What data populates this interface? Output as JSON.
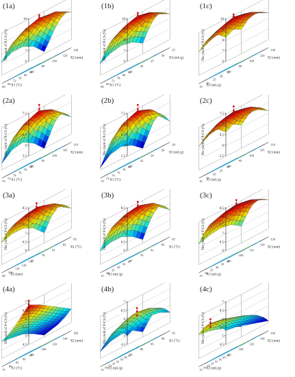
{
  "figure": {
    "z_label": "The yield of P-CS (%)"
  },
  "colors": {
    "floor": "#6b6b6b",
    "wall": "#ffffff",
    "point_red": "#cc1111",
    "contour_low": "#1f9fd8",
    "contour_high": "#e8d21a"
  },
  "chart_data": [
    {
      "id": "1a",
      "type": "surface",
      "title": "(1a)",
      "xlabel": "X1 (°C)",
      "ylabel": "X2 (min)",
      "xticks": [
        "90",
        "84",
        "78",
        "72",
        "66",
        "60"
      ],
      "yticks": [
        "60",
        "80",
        "100",
        "120",
        "140"
      ],
      "zticks": [
        "6",
        "7",
        "8",
        "9",
        "10"
      ],
      "zlim": [
        6,
        10
      ],
      "zgrid": [
        [
          7.4,
          8.3,
          8.9,
          9.1,
          8.6
        ],
        [
          8.2,
          8.9,
          9.4,
          9.4,
          8.8
        ],
        [
          8.6,
          9.3,
          9.6,
          9.4,
          8.5
        ],
        [
          8.5,
          9.1,
          9.3,
          9.0,
          7.9
        ],
        [
          8.0,
          8.6,
          8.6,
          8.2,
          7.0
        ],
        [
          7.2,
          7.7,
          7.7,
          7.2,
          6.2
        ]
      ]
    },
    {
      "id": "1b",
      "type": "surface",
      "title": "(1b)",
      "xlabel": "X1 (°C)",
      "ylabel": "X3 (mL/g)",
      "xticks": [
        "90",
        "84",
        "78",
        "72",
        "66",
        "60"
      ],
      "yticks": [
        "15",
        "20",
        "25",
        "30",
        "35"
      ],
      "zticks": [
        "6",
        "7",
        "8",
        "9",
        "10"
      ],
      "zlim": [
        6,
        10
      ],
      "zgrid": [
        [
          8.0,
          8.6,
          9.0,
          8.9,
          8.4
        ],
        [
          8.6,
          9.2,
          9.5,
          9.3,
          8.8
        ],
        [
          8.9,
          9.5,
          9.8,
          9.6,
          9.0
        ],
        [
          8.7,
          9.3,
          9.5,
          9.3,
          8.7
        ],
        [
          8.1,
          8.6,
          8.8,
          8.6,
          8.0
        ],
        [
          7.1,
          7.6,
          7.8,
          7.6,
          7.0
        ]
      ]
    },
    {
      "id": "1c",
      "type": "surface",
      "title": "(1c)",
      "xlabel": "X3 (mL/g)",
      "ylabel": "X2 (min)",
      "xticks": [
        "35",
        "30",
        "25",
        "20",
        "15"
      ],
      "yticks": [
        "60",
        "80",
        "100",
        "120",
        "140"
      ],
      "zticks": [
        "6",
        "7",
        "8",
        "9",
        "10"
      ],
      "zlim": [
        6,
        10
      ],
      "zgrid": [
        [
          8.2,
          8.8,
          9.1,
          9.0,
          8.5
        ],
        [
          8.8,
          9.3,
          9.6,
          9.4,
          8.9
        ],
        [
          9.0,
          9.5,
          9.8,
          9.6,
          9.1
        ],
        [
          8.8,
          9.3,
          9.6,
          9.4,
          8.9
        ],
        [
          8.2,
          8.7,
          9.0,
          8.8,
          8.3
        ]
      ]
    },
    {
      "id": "2a",
      "type": "surface",
      "title": "(2a)",
      "xlabel": "X1 (°C)",
      "ylabel": "X2 (min)",
      "xticks": [
        "80",
        "78",
        "76",
        "74",
        "72",
        "70"
      ],
      "yticks": [
        "90",
        "95",
        "100",
        "105",
        "110"
      ],
      "zticks": [
        "5.5",
        "6",
        "6.5",
        "7",
        "7.5"
      ],
      "zlim": [
        5.5,
        7.5
      ],
      "zgrid": [
        [
          6.2,
          6.6,
          6.8,
          6.7,
          6.3
        ],
        [
          6.6,
          7.0,
          7.2,
          7.0,
          6.6
        ],
        [
          6.8,
          7.2,
          7.4,
          7.2,
          6.7
        ],
        [
          6.7,
          7.1,
          7.2,
          7.0,
          6.5
        ],
        [
          6.3,
          6.7,
          6.8,
          6.6,
          6.0
        ],
        [
          5.8,
          6.2,
          6.3,
          6.0,
          5.5
        ]
      ]
    },
    {
      "id": "2b",
      "type": "surface",
      "title": "(2b)",
      "xlabel": "X1 (°C)",
      "ylabel": "X3 (mL/g)",
      "xticks": [
        "80",
        "78",
        "76",
        "74",
        "72",
        "70"
      ],
      "yticks": [
        "20",
        "22",
        "24",
        "26",
        "28"
      ],
      "zticks": [
        "5.5",
        "6",
        "6.5",
        "7",
        "7.5"
      ],
      "zlim": [
        5.5,
        7.5
      ],
      "zgrid": [
        [
          6.0,
          6.5,
          6.7,
          6.6,
          6.1
        ],
        [
          6.5,
          7.0,
          7.2,
          7.0,
          6.5
        ],
        [
          6.7,
          7.2,
          7.4,
          7.2,
          6.7
        ],
        [
          6.6,
          7.1,
          7.2,
          7.0,
          6.5
        ],
        [
          6.1,
          6.6,
          6.7,
          6.5,
          6.0
        ],
        [
          5.6,
          6.0,
          6.1,
          5.9,
          5.5
        ]
      ]
    },
    {
      "id": "2c",
      "type": "surface",
      "title": "(2c)",
      "xlabel": "X3 (mL/g)",
      "ylabel": "X2 (min)",
      "xticks": [
        "30",
        "25",
        "20",
        "15",
        "10"
      ],
      "yticks": [
        "90",
        "95",
        "100",
        "105",
        "110"
      ],
      "zticks": [
        "5.5",
        "6",
        "6.5",
        "7",
        "7.5"
      ],
      "zlim": [
        5.5,
        7.5
      ],
      "zgrid": [
        [
          6.6,
          6.9,
          7.0,
          6.9,
          6.6
        ],
        [
          6.9,
          7.2,
          7.3,
          7.2,
          6.9
        ],
        [
          7.0,
          7.3,
          7.4,
          7.3,
          7.0
        ],
        [
          6.9,
          7.2,
          7.3,
          7.2,
          6.9
        ],
        [
          6.6,
          6.9,
          7.0,
          6.9,
          6.6
        ]
      ]
    },
    {
      "id": "3a",
      "type": "surface",
      "title": "(3a)",
      "xlabel": "X2 (min)",
      "ylabel": "X1 (°C)",
      "xticks": [
        "130",
        "120",
        "110",
        "100",
        "90"
      ],
      "yticks": [
        "77",
        "79",
        "81",
        "83",
        "85"
      ],
      "zticks": [
        "6",
        "6.5",
        "7",
        "7.5",
        "8",
        "8.5"
      ],
      "zlim": [
        6,
        8.5
      ],
      "zgrid": [
        [
          7.4,
          7.7,
          7.8,
          7.6,
          7.2
        ],
        [
          7.8,
          8.1,
          8.2,
          8.0,
          7.6
        ],
        [
          8.0,
          8.2,
          8.3,
          8.1,
          7.7
        ],
        [
          7.8,
          8.0,
          8.1,
          7.8,
          7.3
        ],
        [
          7.3,
          7.5,
          7.5,
          7.2,
          6.6
        ]
      ]
    },
    {
      "id": "3b",
      "type": "surface",
      "title": "(3b)",
      "xlabel": "X3 (mL/g)",
      "ylabel": "X1 (°C)",
      "xticks": [
        "40",
        "35",
        "30",
        "25",
        "20",
        "15"
      ],
      "yticks": [
        "77",
        "79",
        "81",
        "83",
        "85"
      ],
      "zticks": [
        "6",
        "6.5",
        "7",
        "7.5",
        "8",
        "8.5"
      ],
      "zlim": [
        6,
        8.5
      ],
      "zgrid": [
        [
          7.2,
          7.6,
          7.8,
          7.6,
          7.1
        ],
        [
          7.7,
          8.0,
          8.2,
          8.0,
          7.5
        ],
        [
          7.9,
          8.2,
          8.3,
          8.1,
          7.7
        ],
        [
          7.8,
          8.1,
          8.2,
          7.9,
          7.4
        ],
        [
          7.4,
          7.6,
          7.7,
          7.4,
          6.9
        ],
        [
          6.8,
          7.0,
          7.0,
          6.7,
          6.2
        ]
      ]
    },
    {
      "id": "3c",
      "type": "surface",
      "title": "(3c)",
      "xlabel": "X3 (mL/g)",
      "ylabel": "X2 (min)",
      "xticks": [
        "40",
        "35",
        "30",
        "25",
        "20",
        "15"
      ],
      "yticks": [
        "90",
        "100",
        "110",
        "120",
        "130"
      ],
      "zticks": [
        "6",
        "6.5",
        "7",
        "7.5",
        "8",
        "8.5"
      ],
      "zlim": [
        6,
        8.5
      ],
      "zgrid": [
        [
          7.6,
          7.9,
          8.1,
          8.0,
          7.7
        ],
        [
          7.9,
          8.2,
          8.3,
          8.2,
          7.9
        ],
        [
          8.1,
          8.3,
          8.4,
          8.3,
          8.0
        ],
        [
          8.0,
          8.2,
          8.3,
          8.2,
          7.9
        ],
        [
          7.7,
          7.9,
          8.0,
          7.9,
          7.5
        ],
        [
          7.2,
          7.4,
          7.5,
          7.4,
          7.0
        ]
      ]
    },
    {
      "id": "4a",
      "type": "surface",
      "title": "(4a)",
      "xlabel": "X1 (°C)",
      "ylabel": "X2 (min)",
      "xticks": [
        "95",
        "90",
        "85",
        "80",
        "75"
      ],
      "yticks": [
        "80",
        "100",
        "120",
        "140",
        "160"
      ],
      "zticks": [
        "4.5",
        "5",
        "5.5",
        "6",
        "6.5",
        "7"
      ],
      "zlim": [
        4.5,
        7
      ],
      "zgrid": [
        [
          6.8,
          6.5,
          6.1,
          5.7,
          5.3
        ],
        [
          6.4,
          6.2,
          5.8,
          5.4,
          5.0
        ],
        [
          6.0,
          5.9,
          5.6,
          5.2,
          4.8
        ],
        [
          5.7,
          5.6,
          5.4,
          5.1,
          4.7
        ],
        [
          5.5,
          5.4,
          5.3,
          5.0,
          4.6
        ]
      ]
    },
    {
      "id": "4b",
      "type": "surface",
      "title": "(4b)",
      "xlabel": "X3 (mL/g)",
      "ylabel": "X1 (°C)",
      "xticks": [
        "43",
        "39",
        "35",
        "31",
        "27",
        "23",
        "19",
        "15"
      ],
      "yticks": [
        "75",
        "80",
        "85",
        "90",
        "95"
      ],
      "zticks": [
        "4.5",
        "5",
        "5.5",
        "6",
        "6.5",
        "7"
      ],
      "zlim": [
        4.5,
        7
      ],
      "zgrid": [
        [
          5.0,
          5.3,
          5.5,
          5.4,
          5.1
        ],
        [
          5.3,
          5.6,
          5.8,
          5.7,
          5.4
        ],
        [
          5.5,
          5.8,
          6.0,
          5.9,
          5.6
        ],
        [
          5.6,
          5.9,
          6.1,
          6.0,
          5.7
        ],
        [
          5.6,
          5.9,
          6.1,
          6.0,
          5.6
        ],
        [
          5.4,
          5.7,
          5.9,
          5.8,
          5.4
        ],
        [
          5.2,
          5.5,
          5.6,
          5.5,
          5.1
        ],
        [
          4.9,
          5.2,
          5.3,
          5.2,
          4.8
        ]
      ]
    },
    {
      "id": "4c",
      "type": "surface",
      "title": "(4c)",
      "xlabel": "X3 (mL/g)",
      "ylabel": "X2 (min)",
      "xticks": [
        "43",
        "39",
        "35",
        "31",
        "27",
        "23",
        "19",
        "15"
      ],
      "yticks": [
        "80",
        "100",
        "120",
        "140",
        "160"
      ],
      "zticks": [
        "4.5",
        "5",
        "5.5",
        "6",
        "6.5",
        "7"
      ],
      "zlim": [
        4.5,
        7
      ],
      "zgrid": [
        [
          5.3,
          5.2,
          5.0,
          4.8,
          4.6
        ],
        [
          5.6,
          5.5,
          5.3,
          5.1,
          4.9
        ],
        [
          5.9,
          5.8,
          5.6,
          5.4,
          5.1
        ],
        [
          6.1,
          6.0,
          5.8,
          5.6,
          5.3
        ],
        [
          6.2,
          6.1,
          5.9,
          5.7,
          5.4
        ],
        [
          6.2,
          6.1,
          5.9,
          5.7,
          5.4
        ],
        [
          6.1,
          6.0,
          5.8,
          5.6,
          5.3
        ],
        [
          5.9,
          5.8,
          5.6,
          5.4,
          5.1
        ]
      ]
    }
  ]
}
